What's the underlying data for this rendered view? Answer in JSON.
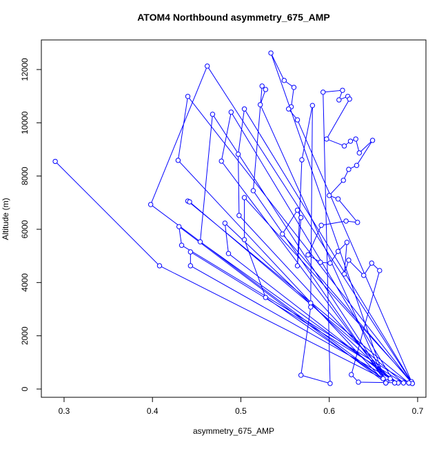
{
  "chart_data": {
    "type": "line",
    "title": "ATOM4 Northbound asymmetry_675_AMP",
    "x_label": "asymmetry_675_AMP",
    "y_label": "Altitude (m)",
    "color": "#0000ff",
    "markers": true,
    "x": [
      0.29,
      0.408,
      0.661,
      0.398,
      0.462,
      0.694,
      0.44,
      0.429,
      0.664,
      0.43,
      0.433,
      0.69,
      0.44,
      0.442,
      0.684,
      0.443,
      0.443,
      0.678,
      0.454,
      0.468,
      0.665,
      0.478,
      0.489,
      0.674,
      0.482,
      0.486,
      0.669,
      0.498,
      0.497,
      0.504,
      0.693,
      0.504,
      0.504,
      0.528,
      0.661,
      0.514,
      0.524,
      0.528,
      0.522,
      0.664,
      0.534,
      0.549,
      0.56,
      0.557,
      0.554,
      0.564,
      0.694,
      0.547,
      0.564,
      0.568,
      0.564,
      0.569,
      0.581,
      0.579,
      0.579,
      0.568,
      0.601,
      0.593,
      0.615,
      0.611,
      0.621,
      0.623,
      0.597,
      0.617,
      0.624,
      0.63,
      0.634,
      0.649,
      0.631,
      0.622,
      0.616,
      0.6,
      0.61,
      0.632,
      0.619,
      0.591,
      0.576,
      0.59,
      0.601,
      0.61,
      0.62,
      0.617,
      0.622,
      0.639,
      0.648,
      0.657,
      0.625,
      0.633,
      0.69
    ],
    "values": [
      8550,
      4630,
      390,
      6930,
      12130,
      210,
      10990,
      8590,
      230,
      6100,
      5400,
      230,
      7060,
      7030,
      230,
      5150,
      4630,
      230,
      5530,
      10320,
      280,
      8560,
      10400,
      230,
      6230,
      5090,
      390,
      6520,
      8820,
      10520,
      280,
      7190,
      5610,
      3440,
      390,
      7450,
      11380,
      11250,
      10680,
      230,
      12620,
      11590,
      11330,
      10600,
      10520,
      10110,
      210,
      5820,
      6720,
      6440,
      4630,
      8610,
      10650,
      3230,
      3080,
      520,
      210,
      11150,
      11220,
      10860,
      10990,
      10890,
      9390,
      9130,
      9310,
      9390,
      8870,
      9340,
      8400,
      8250,
      7840,
      7270,
      7140,
      6260,
      6310,
      6150,
      5040,
      4760,
      4730,
      5170,
      5510,
      4320,
      4840,
      4270,
      4730,
      4450,
      540,
      260,
      230
    ],
    "xlim": [
      0.2743,
      0.7094
    ],
    "ylim": [
      -310,
      13112
    ],
    "xticks": [
      0.3,
      0.4,
      0.5,
      0.6,
      0.7
    ],
    "yticks": [
      0,
      2000,
      4000,
      6000,
      8000,
      10000,
      12000
    ]
  }
}
